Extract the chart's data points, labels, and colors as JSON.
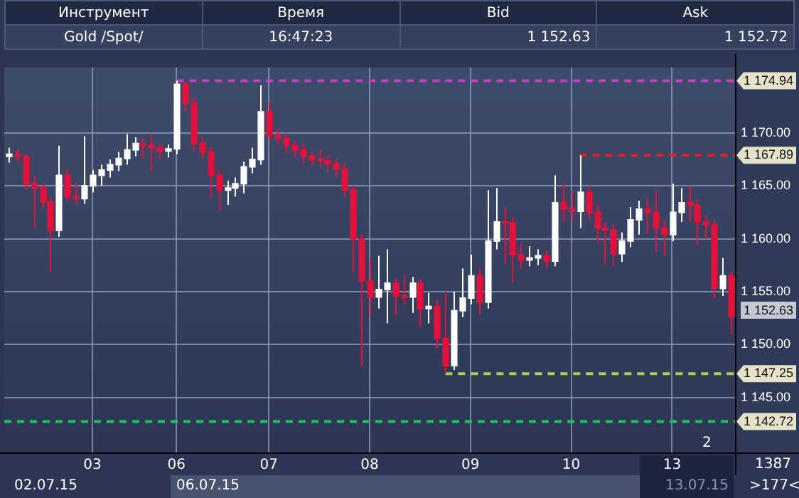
{
  "chart_data": {
    "type": "candlestick",
    "categories": [
      null,
      null,
      null,
      null,
      null,
      null,
      null,
      null,
      null,
      null,
      "03",
      null,
      null,
      null,
      null,
      null,
      null,
      null,
      null,
      null,
      "06",
      null,
      null,
      null,
      null,
      null,
      null,
      null,
      null,
      null,
      null,
      "07",
      null,
      null,
      null,
      null,
      null,
      null,
      null,
      null,
      null,
      null,
      null,
      "08",
      null,
      null,
      null,
      null,
      null,
      null,
      null,
      null,
      null,
      null,
      null,
      "09",
      null,
      null,
      null,
      null,
      null,
      null,
      null,
      null,
      null,
      null,
      null,
      "10",
      null,
      null,
      null,
      null,
      null,
      null,
      null,
      null,
      null,
      null,
      null,
      "13",
      null,
      null,
      null,
      null,
      null,
      null,
      null
    ],
    "ohlc": [
      [
        1167.8,
        1168.6,
        1167.2,
        1168.0
      ],
      [
        1168.0,
        1168.5,
        1167.3,
        1167.8
      ],
      [
        1167.8,
        1168.0,
        1164.6,
        1165.2
      ],
      [
        1165.2,
        1165.9,
        1161.0,
        1164.8
      ],
      [
        1164.8,
        1165.3,
        1162.9,
        1163.5
      ],
      [
        1163.5,
        1164.0,
        1156.8,
        1160.8
      ],
      [
        1160.8,
        1168.8,
        1160.2,
        1166.0
      ],
      [
        1166.0,
        1166.6,
        1163.5,
        1164.0
      ],
      [
        1164.0,
        1165.3,
        1163.2,
        1163.8
      ],
      [
        1163.8,
        1169.7,
        1163.3,
        1165.0
      ],
      [
        1165.0,
        1166.5,
        1164.4,
        1166.0
      ],
      [
        1166.0,
        1167.0,
        1165.0,
        1166.5
      ],
      [
        1166.5,
        1167.5,
        1165.8,
        1167.0
      ],
      [
        1167.0,
        1168.2,
        1166.4,
        1167.6
      ],
      [
        1167.6,
        1169.9,
        1167.0,
        1168.4
      ],
      [
        1168.4,
        1169.6,
        1167.8,
        1169.0
      ],
      [
        1169.0,
        1169.5,
        1167.6,
        1168.8
      ],
      [
        1168.8,
        1169.8,
        1166.5,
        1168.6
      ],
      [
        1168.6,
        1169.0,
        1167.6,
        1168.3
      ],
      [
        1168.3,
        1168.9,
        1167.7,
        1168.5
      ],
      [
        1168.5,
        1174.94,
        1168.0,
        1174.6
      ],
      [
        1174.6,
        1174.8,
        1172.0,
        1172.8
      ],
      [
        1172.8,
        1173.4,
        1168.3,
        1169.0
      ],
      [
        1169.0,
        1169.6,
        1167.6,
        1168.2
      ],
      [
        1168.2,
        1168.7,
        1163.8,
        1166.0
      ],
      [
        1166.0,
        1166.5,
        1162.6,
        1164.6
      ],
      [
        1164.6,
        1165.5,
        1163.2,
        1164.8
      ],
      [
        1164.8,
        1165.8,
        1164.0,
        1165.2
      ],
      [
        1165.2,
        1167.3,
        1164.3,
        1166.8
      ],
      [
        1166.8,
        1168.6,
        1166.2,
        1167.5
      ],
      [
        1167.5,
        1174.5,
        1167.0,
        1172.0
      ],
      [
        1172.0,
        1172.9,
        1169.2,
        1169.8
      ],
      [
        1169.8,
        1170.4,
        1168.9,
        1169.5
      ],
      [
        1169.5,
        1170.0,
        1168.1,
        1168.8
      ],
      [
        1168.8,
        1169.3,
        1167.7,
        1168.4
      ],
      [
        1168.4,
        1169.0,
        1167.1,
        1167.8
      ],
      [
        1167.8,
        1168.3,
        1166.9,
        1167.5
      ],
      [
        1167.5,
        1168.4,
        1166.8,
        1167.4
      ],
      [
        1167.4,
        1167.9,
        1166.3,
        1167.1
      ],
      [
        1167.1,
        1167.6,
        1165.8,
        1166.6
      ],
      [
        1166.6,
        1167.2,
        1163.9,
        1164.6
      ],
      [
        1164.6,
        1165.0,
        1156.8,
        1160.0
      ],
      [
        1160.0,
        1160.4,
        1148.0,
        1156.0
      ],
      [
        1156.0,
        1158.2,
        1152.6,
        1154.5
      ],
      [
        1154.5,
        1158.4,
        1153.4,
        1155.2
      ],
      [
        1155.2,
        1159.0,
        1152.0,
        1155.8
      ],
      [
        1155.8,
        1156.3,
        1152.8,
        1154.6
      ],
      [
        1154.6,
        1156.6,
        1153.8,
        1154.5
      ],
      [
        1154.5,
        1156.4,
        1153.0,
        1155.8
      ],
      [
        1155.8,
        1156.2,
        1151.6,
        1153.4
      ],
      [
        1153.4,
        1154.9,
        1152.0,
        1153.6
      ],
      [
        1153.6,
        1154.2,
        1149.6,
        1150.6
      ],
      [
        1150.6,
        1155.0,
        1147.25,
        1148.0
      ],
      [
        1148.0,
        1155.0,
        1147.6,
        1153.2
      ],
      [
        1153.2,
        1157.2,
        1152.6,
        1154.4
      ],
      [
        1154.4,
        1158.5,
        1153.8,
        1156.5
      ],
      [
        1156.5,
        1157.2,
        1152.8,
        1154.0
      ],
      [
        1154.0,
        1164.6,
        1153.4,
        1159.8
      ],
      [
        1159.8,
        1164.8,
        1159.0,
        1161.6
      ],
      [
        1161.6,
        1163.0,
        1157.6,
        1161.5
      ],
      [
        1161.5,
        1162.0,
        1155.8,
        1158.5
      ],
      [
        1158.5,
        1159.6,
        1157.2,
        1158.0
      ],
      [
        1158.0,
        1159.3,
        1157.4,
        1158.2
      ],
      [
        1158.2,
        1159.0,
        1157.5,
        1158.4
      ],
      [
        1158.4,
        1158.9,
        1157.2,
        1157.9
      ],
      [
        1157.9,
        1166.0,
        1157.4,
        1163.4
      ],
      [
        1163.4,
        1165.2,
        1161.6,
        1162.8
      ],
      [
        1162.8,
        1164.5,
        1161.6,
        1162.6
      ],
      [
        1162.6,
        1167.89,
        1161.0,
        1164.4
      ],
      [
        1164.4,
        1165.0,
        1161.8,
        1162.5
      ],
      [
        1162.5,
        1163.2,
        1159.6,
        1161.0
      ],
      [
        1161.0,
        1161.6,
        1157.6,
        1160.8
      ],
      [
        1160.8,
        1161.4,
        1157.4,
        1158.6
      ],
      [
        1158.6,
        1160.6,
        1157.8,
        1159.8
      ],
      [
        1159.8,
        1163.0,
        1159.2,
        1161.8
      ],
      [
        1161.8,
        1163.6,
        1160.4,
        1162.8
      ],
      [
        1162.8,
        1163.8,
        1160.5,
        1162.5
      ],
      [
        1162.5,
        1164.6,
        1158.8,
        1161.0
      ],
      [
        1161.0,
        1161.8,
        1158.4,
        1160.4
      ],
      [
        1160.4,
        1165.2,
        1159.8,
        1162.5
      ],
      [
        1162.5,
        1164.8,
        1161.6,
        1163.4
      ],
      [
        1163.4,
        1165.0,
        1161.6,
        1163.2
      ],
      [
        1163.2,
        1163.8,
        1159.4,
        1161.6
      ],
      [
        1161.6,
        1162.2,
        1160.0,
        1161.3
      ],
      [
        1161.3,
        1161.8,
        1154.4,
        1155.3
      ],
      [
        1155.3,
        1158.2,
        1154.6,
        1156.5
      ],
      [
        1156.5,
        1156.9,
        1151.0,
        1152.63
      ]
    ],
    "colors": [
      "#ffffff",
      "#e8103a",
      "#e8103a",
      "#e8103a",
      "#e8103a",
      "#e8103a",
      "#ffffff",
      "#e8103a",
      "#e8103a",
      "#ffffff",
      "#ffffff",
      "#ffffff",
      "#ffffff",
      "#ffffff",
      "#ffffff",
      "#ffffff",
      "#e8103a",
      "#e8103a",
      "#e8103a",
      "#ffffff",
      "#ffffff",
      "#e8103a",
      "#e8103a",
      "#e8103a",
      "#e8103a",
      "#e8103a",
      "#ffffff",
      "#ffffff",
      "#ffffff",
      "#ffffff",
      "#ffffff",
      "#e8103a",
      "#e8103a",
      "#e8103a",
      "#e8103a",
      "#e8103a",
      "#e8103a",
      "#e8103a",
      "#e8103a",
      "#e8103a",
      "#e8103a",
      "#e8103a",
      "#e8103a",
      "#e8103a",
      "#ffffff",
      "#ffffff",
      "#e8103a",
      "#e8103a",
      "#ffffff",
      "#e8103a",
      "#ffffff",
      "#e8103a",
      "#e8103a",
      "#ffffff",
      "#ffffff",
      "#ffffff",
      "#e8103a",
      "#ffffff",
      "#ffffff",
      "#e8103a",
      "#e8103a",
      "#e8103a",
      "#ffffff",
      "#ffffff",
      "#e8103a",
      "#ffffff",
      "#e8103a",
      "#e8103a",
      "#ffffff",
      "#e8103a",
      "#e8103a",
      "#e8103a",
      "#e8103a",
      "#ffffff",
      "#ffffff",
      "#ffffff",
      "#e8103a",
      "#e8103a",
      "#e8103a",
      "#ffffff",
      "#ffffff",
      "#e8103a",
      "#e8103a",
      "#e8103a",
      "#e8103a",
      "#ffffff",
      "#e8103a"
    ],
    "ylim": [
      1139.8,
      1176.2
    ],
    "yticks": [
      {
        "value": 1145,
        "label": "1 145.00"
      },
      {
        "value": 1150,
        "label": "1 150.00"
      },
      {
        "value": 1155,
        "label": "1 155.00"
      },
      {
        "value": 1160,
        "label": "1 160.00"
      },
      {
        "value": 1165,
        "label": "1 165.00"
      },
      {
        "value": 1170,
        "label": "1 170.00"
      }
    ],
    "grid": true,
    "ref_lines": [
      {
        "axis": "y",
        "value": 1174.94,
        "label": "1 174.94",
        "color": "#c040c0",
        "line_style": "dashed"
      },
      {
        "axis": "y",
        "value": 1167.89,
        "label": "1 167.89",
        "color": "#e02020",
        "line_style": "dashed"
      },
      {
        "axis": "y",
        "value": 1147.25,
        "label": "1 147.25",
        "color": "#a8d050",
        "line_style": "dashed"
      },
      {
        "axis": "y",
        "value": 1142.72,
        "label": "1 142.72",
        "color": "#20c060",
        "line_style": "dashed"
      }
    ],
    "annotations": [
      "Инструмент",
      "Время",
      "Bid",
      "Ask",
      "Gold /Spot/",
      "16:47:23",
      "1 152.63",
      "1 152.72",
      "1 152.63",
      "02.07.15",
      "06.07.15",
      "13.07.15",
      "1387",
      ">177<",
      "2"
    ]
  }
}
